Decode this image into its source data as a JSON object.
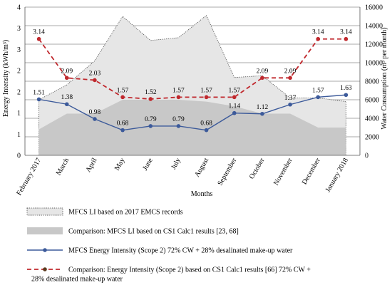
{
  "chart_data": {
    "type": "line",
    "categories": [
      "February 2017",
      "March",
      "April",
      "May",
      "June",
      "July",
      "August",
      "September",
      "October",
      "November",
      "December",
      "January 2018"
    ],
    "xlabel": "Months",
    "ylabel_left": "Energy Intensity (kWh/m³)",
    "ylabel_right": "Water Consumption (m³ per month)",
    "ylim_left": [
      0,
      4
    ],
    "ylim_left_ticks": [
      "0",
      "1",
      "1",
      "2",
      "2",
      "3",
      "3",
      "4"
    ],
    "ylim_right": [
      0,
      16000
    ],
    "yticks_right": [
      0,
      2000,
      4000,
      6000,
      8000,
      10000,
      12000,
      14000,
      16000
    ],
    "grid": true,
    "series": [
      {
        "name": "MFCS LI based on 2017 EMCS records",
        "type": "area",
        "axis": "right",
        "values": [
          6000,
          7600,
          10200,
          15000,
          12400,
          12700,
          15100,
          8400,
          8600,
          6200,
          6200,
          5800
        ],
        "fill": "#e6e6e6",
        "stroke": "#555555"
      },
      {
        "name": "Comparison:  MFCS LI based on CS1 Calc1 results [23, 68]",
        "type": "area",
        "axis": "right",
        "values": [
          2800,
          4500,
          4500,
          6000,
          6000,
          6000,
          5800,
          5300,
          4500,
          4500,
          3000,
          3000
        ],
        "fill": "#c8c8c8"
      },
      {
        "name": "MFCS Energy Intensity (Scope 2) 72% CW + 28% desalinated make-up water",
        "type": "line",
        "axis": "left",
        "values": [
          1.51,
          1.38,
          0.98,
          0.68,
          0.79,
          0.79,
          0.68,
          1.14,
          1.12,
          1.37,
          1.57,
          1.63
        ],
        "labels": [
          "1.51",
          "1.38",
          "0.98",
          "0.68",
          "0.79",
          "0.79",
          "0.68",
          "1.14",
          "1.12",
          "1.37",
          "1.57",
          "1.63"
        ],
        "color": "#3c5a9a"
      },
      {
        "name": "Comparison: Energy Intensity (Scope 2) based on CS1 Calc1 results [66]  72% CW + 28% desalinated make-up water",
        "type": "line",
        "axis": "left",
        "dashed": true,
        "values": [
          3.14,
          2.09,
          2.03,
          1.57,
          1.52,
          1.57,
          1.57,
          1.57,
          2.09,
          2.09,
          3.14,
          3.14
        ],
        "labels": [
          "3.14",
          "2.09",
          "2.03",
          "1.57",
          "1.52",
          "1.57",
          "1.57",
          "1.57",
          "2.09",
          "2.09",
          "3.14",
          "3.14"
        ],
        "color": "#c0282d"
      }
    ],
    "legend_position": "bottom"
  }
}
